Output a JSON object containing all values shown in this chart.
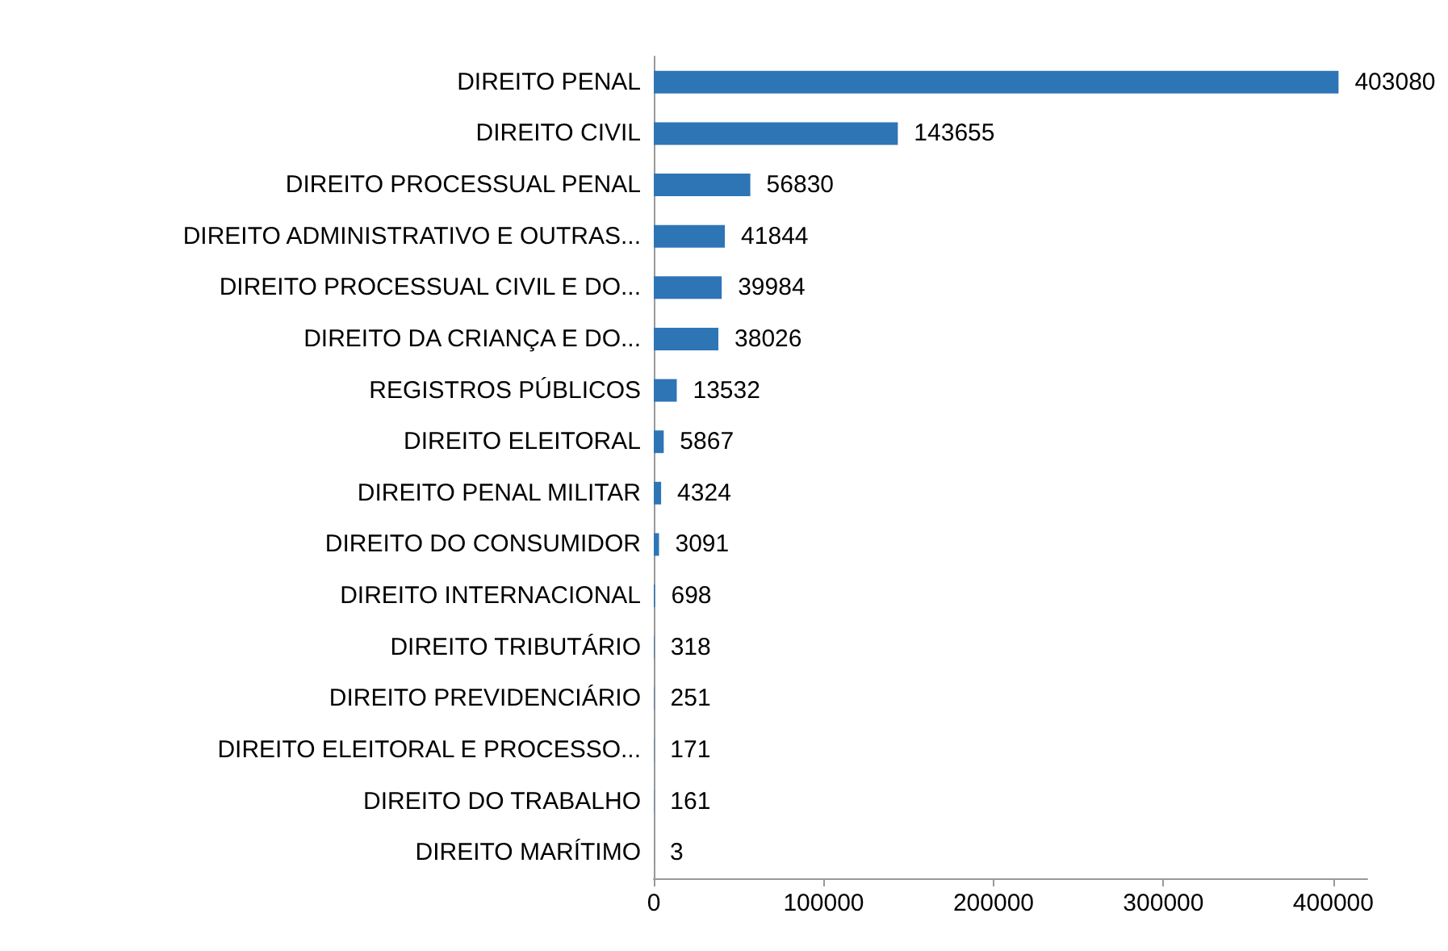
{
  "chart_data": {
    "type": "bar",
    "orientation": "horizontal",
    "categories": [
      "DIREITO PENAL",
      "DIREITO CIVIL",
      "DIREITO PROCESSUAL PENAL",
      "DIREITO ADMINISTRATIVO E OUTRAS...",
      "DIREITO PROCESSUAL CIVIL E DO...",
      "DIREITO DA CRIANÇA E DO...",
      "REGISTROS PÚBLICOS",
      "DIREITO ELEITORAL",
      "DIREITO PENAL MILITAR",
      "DIREITO DO CONSUMIDOR",
      "DIREITO INTERNACIONAL",
      "DIREITO TRIBUTÁRIO",
      "DIREITO PREVIDENCIÁRIO",
      "DIREITO ELEITORAL E PROCESSO...",
      "DIREITO DO TRABALHO",
      "DIREITO MARÍTIMO"
    ],
    "values": [
      403080,
      143655,
      56830,
      41844,
      39984,
      38026,
      13532,
      5867,
      4324,
      3091,
      698,
      318,
      251,
      171,
      161,
      3
    ],
    "color": "#2e75b6",
    "xlim": [
      0,
      420000
    ],
    "xticks": [
      0,
      100000,
      200000,
      300000,
      400000
    ],
    "grid": false,
    "data_labels": true
  }
}
